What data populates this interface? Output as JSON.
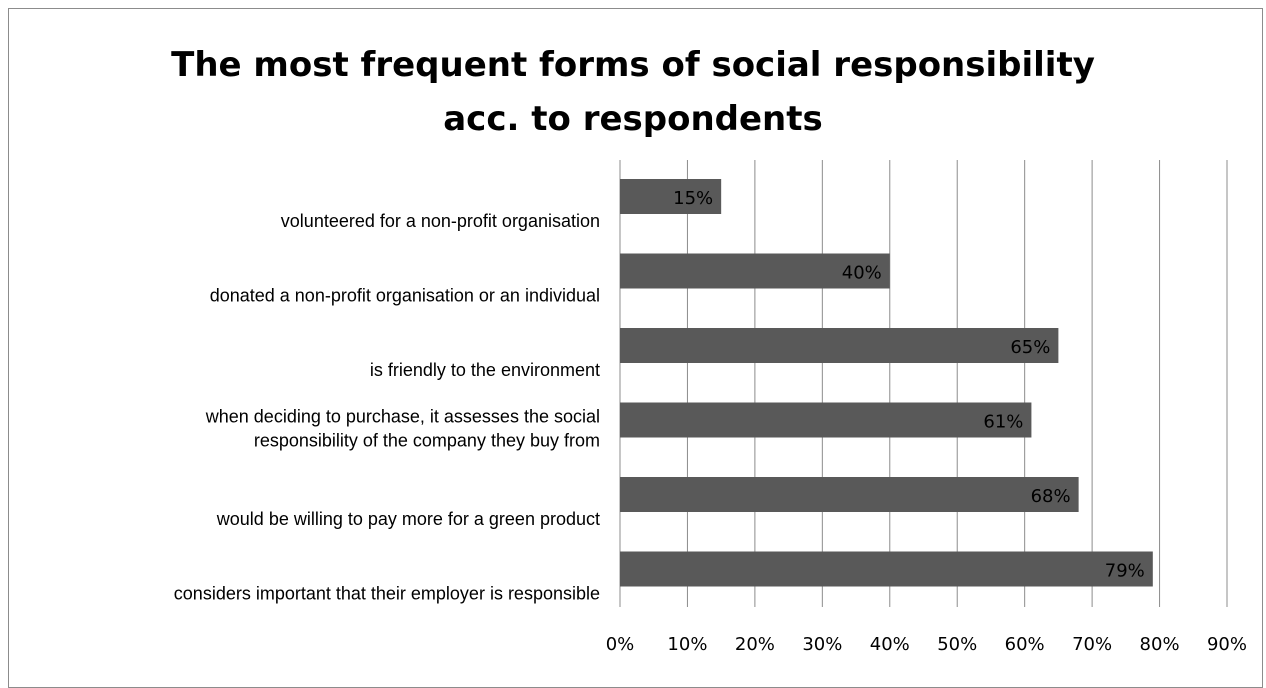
{
  "chart_data": {
    "type": "bar",
    "orientation": "horizontal",
    "title": [
      "The most frequent forms of social responsibility",
      "acc. to respondents"
    ],
    "categories": [
      [
        "volunteered for a non-profit organisation"
      ],
      [
        "donated a non-profit organisation or an individual"
      ],
      [
        "is friendly to the environment"
      ],
      [
        "when deciding to purchase, it assesses the social",
        "responsibility of the company they buy from"
      ],
      [
        "would be willing to pay more for a green product"
      ],
      [
        "considers important that their employer is responsible"
      ]
    ],
    "values": [
      15,
      40,
      65,
      61,
      68,
      79
    ],
    "data_labels": [
      "15%",
      "40%",
      "65%",
      "61%",
      "68%",
      "79%"
    ],
    "xlim": [
      0,
      90
    ],
    "x_ticks": [
      0,
      10,
      20,
      30,
      40,
      50,
      60,
      70,
      80,
      90
    ],
    "x_tick_labels": [
      "0%",
      "10%",
      "20%",
      "30%",
      "40%",
      "50%",
      "60%",
      "70%",
      "80%",
      "90%"
    ],
    "grid": "vertical",
    "legend": "none",
    "colors": {
      "bar": "#595959",
      "gridline": "#8c8c8c",
      "text": "#000000",
      "border": "#8c8c8c"
    }
  }
}
